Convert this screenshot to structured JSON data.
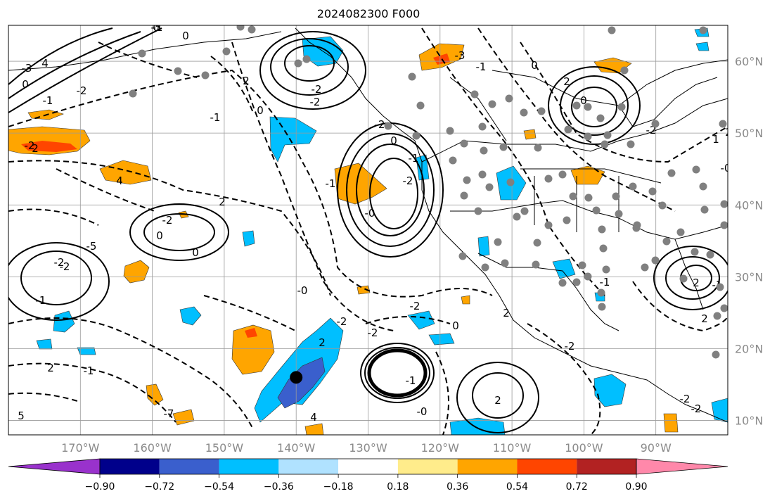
{
  "title": "2024082300 F000",
  "map": {
    "lon_range": [
      -180,
      -80
    ],
    "lat_range": [
      8,
      65
    ],
    "lon_ticks": [
      {
        "value": -170,
        "label": "170°W"
      },
      {
        "value": -160,
        "label": "160°W"
      },
      {
        "value": -150,
        "label": "150°W"
      },
      {
        "value": -140,
        "label": "140°W"
      },
      {
        "value": -130,
        "label": "130°W"
      },
      {
        "value": -120,
        "label": "120°W"
      },
      {
        "value": -110,
        "label": "110°W"
      },
      {
        "value": -100,
        "label": "100°W"
      },
      {
        "value": -90,
        "label": "90°W"
      }
    ],
    "lat_ticks": [
      {
        "value": 60,
        "label": "60°N"
      },
      {
        "value": 50,
        "label": "50°N"
      },
      {
        "value": 40,
        "label": "40°N"
      },
      {
        "value": 30,
        "label": "30°N"
      },
      {
        "value": 20,
        "label": "20°N"
      },
      {
        "value": 10,
        "label": "10°N"
      }
    ],
    "grid": true,
    "marker": {
      "lon": -140,
      "lat": 16
    }
  },
  "colorbar": {
    "colors": [
      "#9932cc",
      "#00008b",
      "#3a5fcd",
      "#00bfff",
      "#b0e2ff",
      "#ffffff",
      "#ffec8b",
      "#ffa500",
      "#ff4500",
      "#b22222",
      "#ff88aa"
    ],
    "bounds": [
      "−0.90",
      "−0.72",
      "−0.54",
      "−0.36",
      "−0.18",
      "0.18",
      "0.36",
      "0.54",
      "0.72",
      "0.90"
    ]
  },
  "contour_labels": [
    "-5",
    "-3",
    "4",
    "-2",
    "0",
    "-1",
    "-2",
    "2",
    "4",
    "2",
    "-2",
    "0",
    "-5",
    "-2",
    "0",
    "-1",
    "-2",
    "-1",
    "0",
    "2",
    "-2",
    "-2",
    "-1",
    "-2",
    "0",
    "-1",
    "-0",
    "-1",
    "-2",
    "0",
    "-0",
    "-2",
    "-2",
    "2",
    "4",
    "-7",
    "5",
    "2",
    "-1",
    "-2",
    "0",
    "-1",
    "-0",
    "2",
    "2",
    "-2",
    "0",
    "-1",
    "-3",
    "2",
    "0",
    "-2",
    "1",
    "2",
    "-0",
    "2",
    "2",
    "-2",
    "-2",
    "-1",
    "-1",
    "0"
  ]
}
